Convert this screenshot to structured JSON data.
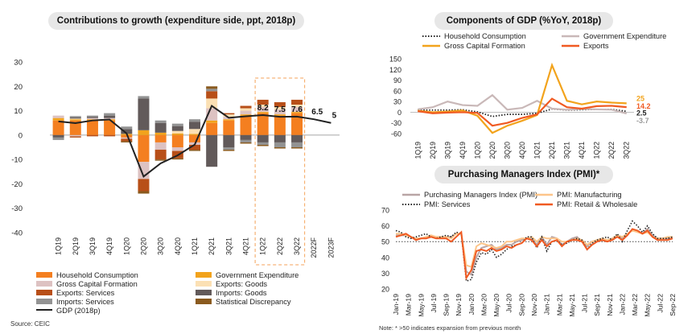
{
  "colors": {
    "household": "#f47f20",
    "gov": "#f2a31c",
    "gcf": "#ddc2c2",
    "exp_goods": "#fbe0b4",
    "exp_services": "#b84f18",
    "imp_goods": "#625a5a",
    "imp_services": "#939393",
    "stat_disc": "#8a5a1e",
    "gdp_line": "#222222",
    "highlight": "#f4a259",
    "pmi_composite": "#b9a5a5",
    "pmi_manufacturing": "#fdc58a",
    "pmi_services": "#222222",
    "pmi_retail": "#f05a22"
  },
  "left": {
    "title": "Contributions to growth (expenditure side, ppt, 2018p)",
    "source": "Source: CEIC"
  },
  "top_right": {
    "title": "Components of GDP (%YoY, 2018p)"
  },
  "bottom_right": {
    "title": "Purchasing Managers Index (PMI)*",
    "note": "Note: * >50 indicates expansion from previous month"
  },
  "chart_data": [
    {
      "type": "bar",
      "title": "Contributions to growth (expenditure side, ppt, 2018p)",
      "categories": [
        "1Q19",
        "2Q19",
        "3Q19",
        "4Q19",
        "1Q20",
        "2Q20",
        "3Q20",
        "4Q20",
        "1Q21",
        "2Q21",
        "3Q21",
        "4Q21",
        "1Q22",
        "2Q22",
        "3Q22",
        "2022F",
        "2023F"
      ],
      "ylim": [
        -40,
        30
      ],
      "yticks": [
        30,
        20,
        10,
        0,
        -10,
        -20,
        -30,
        -40
      ],
      "stacked": true,
      "series": [
        {
          "name": "Household Consumption",
          "key": "household",
          "values": [
            6,
            6,
            6,
            6,
            -1,
            -11,
            -3,
            -5,
            -3,
            5,
            6,
            8,
            9,
            8,
            9,
            null,
            null
          ]
        },
        {
          "name": "Government Expenditure",
          "key": "gov",
          "values": [
            1,
            0.5,
            0.5,
            0.5,
            0.5,
            2,
            1,
            0.7,
            0.5,
            1,
            0.5,
            0.5,
            0.5,
            0.5,
            0.5,
            null,
            null
          ]
        },
        {
          "name": "Gross Capital Formation",
          "key": "gcf",
          "values": [
            1,
            -0.5,
            0.5,
            0.5,
            -0.5,
            -7,
            -3,
            -1.5,
            -1,
            5,
            1,
            1.5,
            2,
            2,
            2,
            null,
            null
          ]
        },
        {
          "name": "Exports: Goods",
          "key": "exp_goods",
          "values": [
            0,
            0.3,
            0,
            0,
            0,
            0,
            0,
            1,
            2,
            4,
            1,
            1,
            1,
            1,
            1,
            null,
            null
          ]
        },
        {
          "name": "Exports: Services",
          "key": "exp_services",
          "values": [
            0,
            -0.5,
            -0.5,
            -0.5,
            -1,
            -5,
            -4,
            -3,
            -2,
            3,
            0.5,
            1,
            2,
            2,
            2,
            null,
            null
          ]
        },
        {
          "name": "Imports: Goods",
          "key": "imp_goods",
          "values": [
            -1,
            0.5,
            0.5,
            1,
            2,
            13,
            4,
            2,
            3,
            -13,
            -5,
            -2,
            -3,
            -3,
            -3,
            null,
            null
          ]
        },
        {
          "name": "Imports: Services",
          "key": "imp_services",
          "values": [
            -1,
            0.5,
            0.5,
            1,
            1,
            1,
            1,
            1,
            1,
            1,
            -1,
            -1,
            -1,
            -2,
            -2,
            null,
            null
          ]
        },
        {
          "name": "Statistical Discrepancy",
          "key": "stat_disc",
          "values": [
            0,
            0,
            0,
            0,
            -0.5,
            -1,
            -0.5,
            -0.5,
            -0.5,
            1,
            -0.5,
            -0.5,
            -0.5,
            -0.5,
            -0.5,
            null,
            null
          ]
        }
      ],
      "line": {
        "name": "GDP (2018p)",
        "values": [
          5.6,
          4.9,
          6.0,
          6.4,
          0.7,
          -17.0,
          -11.6,
          -8.3,
          -3.9,
          12.0,
          7.1,
          7.7,
          8.2,
          7.5,
          7.6,
          6.5,
          5
        ]
      },
      "data_labels": [
        {
          "category": "1Q22",
          "text": "8.2"
        },
        {
          "category": "2Q22",
          "text": "7.5"
        },
        {
          "category": "3Q22",
          "text": "7.6"
        },
        {
          "category": "2022F",
          "text": "6.5"
        },
        {
          "category": "2023F",
          "text": "5"
        }
      ],
      "highlight_categories": [
        "1Q22",
        "2Q22",
        "3Q22"
      ]
    },
    {
      "type": "line",
      "title": "Components of GDP (%YoY, 2018p)",
      "categories": [
        "1Q19",
        "2Q19",
        "3Q19",
        "4Q19",
        "1Q20",
        "2Q20",
        "3Q20",
        "4Q20",
        "1Q21",
        "2Q21",
        "3Q21",
        "4Q21",
        "1Q22",
        "2Q22",
        "3Q22"
      ],
      "xticks": [
        "1Q19",
        "2Q19",
        "3Q19",
        "4Q19",
        "1Q20",
        "2Q20",
        "3Q20",
        "4Q20",
        "1Q21",
        "2Q21",
        "3Q21",
        "4Q21",
        "1Q22",
        "2Q22",
        "3Q22"
      ],
      "ylim": [
        -60,
        150
      ],
      "yticks": [
        150,
        120,
        90,
        60,
        30,
        0,
        -30,
        -60
      ],
      "series": [
        {
          "name": "Household Consumption",
          "key": "household",
          "style": "dotted",
          "color": "#222222",
          "values": [
            6,
            6,
            6,
            7,
            1,
            -12,
            -6,
            -6,
            -3,
            9,
            6,
            7,
            8,
            8,
            2.5
          ]
        },
        {
          "name": "Government Expenditure",
          "key": "gov",
          "style": "solid",
          "color": "#c9b8b8",
          "values": [
            8,
            14,
            30,
            20,
            18,
            48,
            7,
            12,
            32,
            10,
            7,
            9,
            8,
            7,
            -3.7
          ]
        },
        {
          "name": "Gross Capital Formation",
          "key": "gcf",
          "style": "solid",
          "color": "#f2a31c",
          "values": [
            4,
            0,
            2,
            5,
            -10,
            -58,
            -38,
            -24,
            -8,
            132,
            32,
            22,
            30,
            27,
            25
          ]
        },
        {
          "name": "Exports",
          "key": "exports",
          "style": "solid",
          "color": "#f05a22",
          "values": [
            3,
            -3,
            -1,
            0,
            -2,
            -38,
            -30,
            -16,
            -6,
            38,
            14,
            10,
            17,
            18,
            14.2
          ]
        }
      ],
      "end_labels": [
        {
          "text": "25",
          "color": "#f2a31c"
        },
        {
          "text": "14.2",
          "color": "#f05a22"
        },
        {
          "text": "2.5",
          "color": "#222222"
        },
        {
          "text": "-3.7",
          "color": "#999999"
        }
      ]
    },
    {
      "type": "line",
      "title": "Purchasing Managers Index (PMI)*",
      "xticks": [
        "Jan-19",
        "Mar-19",
        "May-19",
        "Jul-19",
        "Sep-19",
        "Nov-19",
        "Jan-20",
        "Mar-20",
        "May-20",
        "Jul-20",
        "Sep-20",
        "Nov-20",
        "Jan-21",
        "Mar-21",
        "May-21",
        "Jul-21",
        "Sep-21",
        "Nov-21",
        "Jan-22",
        "Mar-22",
        "May-22",
        "Jul-22",
        "Sep-22"
      ],
      "ylim": [
        20,
        70
      ],
      "yticks": [
        70,
        60,
        50,
        40,
        30,
        20
      ],
      "reference_line": 50,
      "series": [
        {
          "name": "Purchasing Managers Index (PMI)",
          "key": "composite",
          "style": "solid",
          "color": "#b9a5a5",
          "values": [
            54,
            54,
            54,
            53,
            52,
            52,
            53,
            53,
            53,
            53,
            53,
            53,
            55,
            55,
            31,
            29,
            40,
            46,
            47,
            48,
            45,
            46,
            48,
            48,
            50,
            51,
            52,
            52,
            48,
            53,
            48,
            53,
            52,
            48,
            50,
            52,
            53,
            50,
            47,
            50,
            51,
            52,
            51,
            52,
            54,
            52,
            55,
            57,
            57,
            55,
            58,
            54,
            52,
            52,
            52,
            52
          ]
        },
        {
          "name": "PMI: Manufacturing",
          "key": "manufacturing",
          "style": "solid",
          "color": "#fdc58a",
          "values": [
            55,
            55,
            54,
            53,
            52,
            52,
            53,
            54,
            53,
            53,
            53,
            52,
            55,
            55,
            35,
            34,
            47,
            49,
            48,
            47,
            46,
            47,
            50,
            50,
            51,
            52,
            52,
            53,
            50,
            53,
            52,
            52,
            52,
            50,
            50,
            51,
            52,
            51,
            48,
            50,
            51,
            52,
            51,
            52,
            54,
            53,
            55,
            57,
            56,
            55,
            56,
            53,
            52,
            52,
            53,
            53
          ]
        },
        {
          "name": "PMI: Services",
          "key": "services",
          "style": "dotted",
          "color": "#222222",
          "values": [
            57,
            56,
            53,
            52,
            53,
            54,
            55,
            53,
            52,
            53,
            54,
            53,
            56,
            55,
            25,
            26,
            37,
            43,
            42,
            45,
            40,
            42,
            45,
            47,
            48,
            49,
            53,
            53,
            46,
            53,
            44,
            50,
            51,
            48,
            49,
            51,
            52,
            51,
            45,
            49,
            51,
            52,
            53,
            51,
            55,
            50,
            57,
            63,
            60,
            56,
            60,
            55,
            52,
            52,
            52,
            53
          ]
        },
        {
          "name": "PMI: Retail & Wholesale",
          "key": "retail",
          "style": "solid",
          "color": "#f05a22",
          "values": [
            53,
            54,
            55,
            53,
            51,
            52,
            52,
            53,
            52,
            52,
            52,
            50,
            53,
            56,
            27,
            32,
            44,
            45,
            44,
            46,
            44,
            45,
            47,
            46,
            48,
            49,
            52,
            51,
            47,
            51,
            47,
            50,
            51,
            47,
            50,
            51,
            51,
            50,
            45,
            48,
            50,
            51,
            50,
            51,
            53,
            51,
            54,
            58,
            57,
            55,
            57,
            53,
            51,
            51,
            51,
            52
          ]
        }
      ]
    }
  ]
}
